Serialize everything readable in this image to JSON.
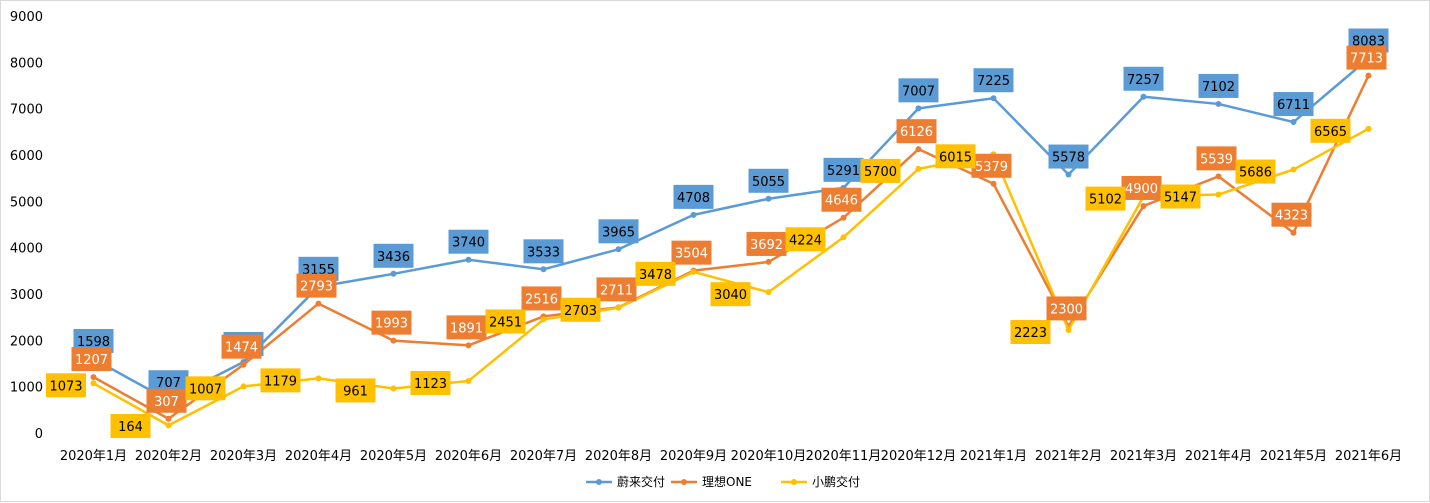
{
  "chart_data": {
    "type": "line",
    "categories": [
      "2020年1月",
      "2020年2月",
      "2020年3月",
      "2020年4月",
      "2020年5月",
      "2020年6月",
      "2020年7月",
      "2020年8月",
      "2020年9月",
      "2020年10月",
      "2020年11月",
      "2020年12月",
      "2021年1月",
      "2021年2月",
      "2021年3月",
      "2021年4月",
      "2021年5月",
      "2021年6月"
    ],
    "series": [
      {
        "name": "蔚来交付",
        "color": "#5b9bd5",
        "values": [
          1598,
          707,
          1533,
          3155,
          3436,
          3740,
          3533,
          3965,
          4708,
          5055,
          5291,
          7007,
          7225,
          5578,
          7257,
          7102,
          6711,
          8083
        ]
      },
      {
        "name": "理想ONE",
        "color": "#ed7d31",
        "values": [
          1207,
          307,
          1474,
          2793,
          1993,
          1891,
          2516,
          2711,
          3504,
          3692,
          4646,
          6126,
          5379,
          2300,
          4900,
          5539,
          4323,
          7713
        ]
      },
      {
        "name": "小鹏交付",
        "color": "#ffc000",
        "values": [
          1073,
          164,
          1007,
          1179,
          961,
          1123,
          2451,
          2703,
          3478,
          3040,
          4224,
          5700,
          6015,
          2223,
          5102,
          5147,
          5686,
          6565
        ]
      }
    ],
    "ylim": [
      0,
      9000
    ],
    "yticks": [
      0,
      1000,
      2000,
      3000,
      4000,
      5000,
      6000,
      7000,
      8000,
      9000
    ],
    "grid": false,
    "legend": "bottom-center",
    "title": "",
    "xlabel": "",
    "ylabel": ""
  }
}
